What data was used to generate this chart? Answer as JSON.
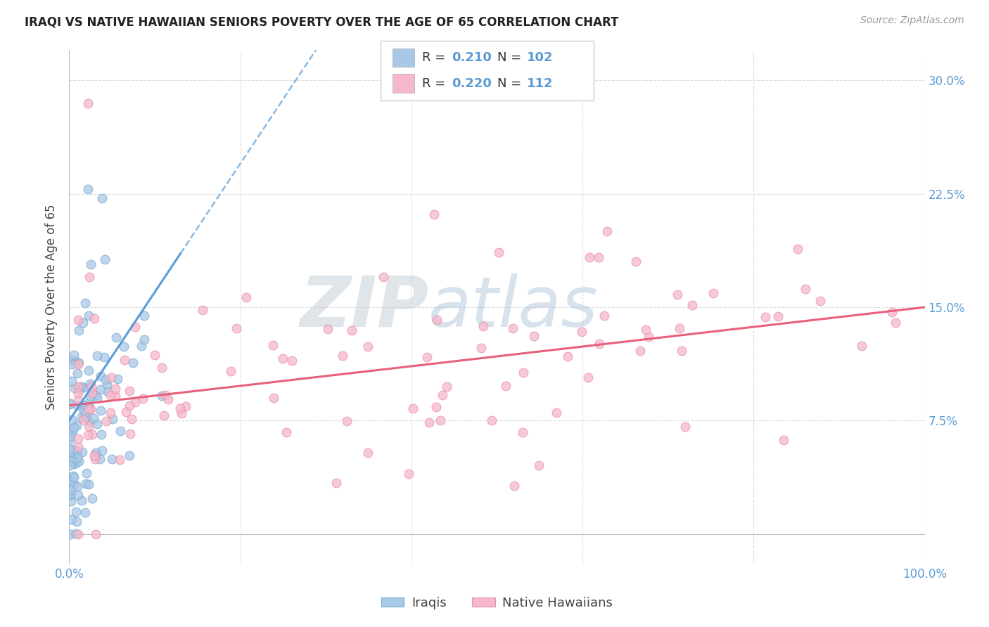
{
  "title": "IRAQI VS NATIVE HAWAIIAN SENIORS POVERTY OVER THE AGE OF 65 CORRELATION CHART",
  "source": "Source: ZipAtlas.com",
  "ylabel": "Seniors Poverty Over the Age of 65",
  "xlim": [
    0,
    1.0
  ],
  "ylim": [
    -0.02,
    0.32
  ],
  "plot_ylim": [
    0.0,
    0.3
  ],
  "iraqi_color": "#a8c8e8",
  "iraqi_edge": "#7aabce",
  "hawaiian_color": "#f5b8cb",
  "hawaiian_edge": "#e890a8",
  "trendline_iraqi_color": "#5b9bd5",
  "trendline_hawaiian_color": "#e8607a",
  "watermark_zip_color": "#c8d0d8",
  "watermark_atlas_color": "#a8c0d8",
  "background_color": "#ffffff",
  "legend_r1": "0.210",
  "legend_n1": "102",
  "legend_r2": "0.220",
  "legend_n2": "112",
  "blue_text_color": "#5b9bd5",
  "dark_text_color": "#444444",
  "grid_color": "#dddddd",
  "tick_color": "#5b9bd5"
}
